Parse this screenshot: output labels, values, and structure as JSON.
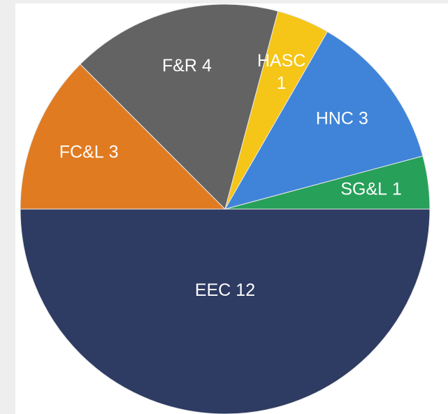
{
  "chart_data": {
    "type": "pie",
    "categories": [
      "EEC",
      "FC&L",
      "F&R",
      "HASC",
      "HNC",
      "SG&L"
    ],
    "values": [
      12,
      3,
      4,
      1,
      3,
      1
    ],
    "colors": [
      "#2e3b62",
      "#e07b22",
      "#636363",
      "#f5c518",
      "#3f84d8",
      "#27a05a"
    ]
  }
}
